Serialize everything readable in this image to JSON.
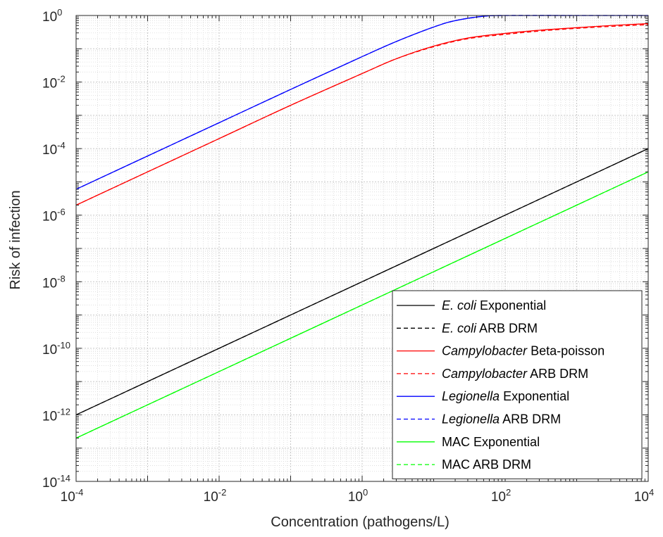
{
  "chart_data": {
    "type": "line",
    "xlabel": "Concentration (pathogens/L)",
    "ylabel": "Risk of infection",
    "x_scale": "log",
    "y_scale": "log",
    "xlim": [
      0.0001,
      10000
    ],
    "ylim": [
      1e-14,
      1
    ],
    "x_ticks": [
      {
        "value": 0.0001,
        "base": "10",
        "exp": "-4"
      },
      {
        "value": 0.01,
        "base": "10",
        "exp": "-2"
      },
      {
        "value": 1,
        "base": "10",
        "exp": "0"
      },
      {
        "value": 100,
        "base": "10",
        "exp": "2"
      },
      {
        "value": 10000,
        "base": "10",
        "exp": "4"
      }
    ],
    "y_ticks": [
      {
        "value": 1,
        "base": "10",
        "exp": "0"
      },
      {
        "value": 0.01,
        "base": "10",
        "exp": "-2"
      },
      {
        "value": 0.0001,
        "base": "10",
        "exp": "-4"
      },
      {
        "value": 1e-06,
        "base": "10",
        "exp": "-6"
      },
      {
        "value": 1e-08,
        "base": "10",
        "exp": "-8"
      },
      {
        "value": 1e-10,
        "base": "10",
        "exp": "-10"
      },
      {
        "value": 1e-12,
        "base": "10",
        "exp": "-12"
      },
      {
        "value": 1e-14,
        "base": "10",
        "exp": "-14"
      }
    ],
    "grid": true,
    "minor_grid": true,
    "legend_position": "bottom-right",
    "series": [
      {
        "name_italic": "E. coli",
        "name_rest": " Exponential",
        "color": "#000000",
        "dash": "solid",
        "x": [
          0.0001,
          0.001,
          0.01,
          0.1,
          1,
          10,
          100,
          1000,
          10000
        ],
        "y": [
          1e-12,
          1e-11,
          1e-10,
          1e-09,
          1e-08,
          1e-07,
          1e-06,
          1e-05,
          0.0001
        ]
      },
      {
        "name_italic": "E. coli",
        "name_rest": " ARB DRM",
        "color": "#000000",
        "dash": "dashed",
        "x": [
          0.0001,
          0.001,
          0.01,
          0.1,
          1,
          10,
          100,
          1000,
          10000
        ],
        "y": [
          1e-12,
          1e-11,
          1e-10,
          1e-09,
          1e-08,
          1e-07,
          1e-06,
          1e-05,
          0.0001
        ]
      },
      {
        "name_italic": "Campylobacter",
        "name_rest": " Beta-poisson",
        "color": "#ff0000",
        "dash": "solid",
        "x": [
          0.0001,
          0.001,
          0.01,
          0.1,
          1,
          3,
          10,
          30,
          100,
          300,
          1000,
          3000,
          10000
        ],
        "y": [
          2e-06,
          2e-05,
          0.0002,
          0.002,
          0.018,
          0.05,
          0.12,
          0.21,
          0.29,
          0.36,
          0.43,
          0.5,
          0.57
        ]
      },
      {
        "name_italic": "Campylobacter",
        "name_rest": " ARB DRM",
        "color": "#ff0000",
        "dash": "dashed",
        "x": [
          0.0001,
          0.001,
          0.01,
          0.1,
          1,
          3,
          10,
          30,
          100,
          300,
          1000,
          3000,
          10000
        ],
        "y": [
          2e-06,
          2e-05,
          0.0002,
          0.002,
          0.018,
          0.05,
          0.115,
          0.2,
          0.27,
          0.34,
          0.41,
          0.47,
          0.53
        ]
      },
      {
        "name_italic": "Legionella",
        "name_rest": " Exponential",
        "color": "#0000ff",
        "dash": "solid",
        "x": [
          0.0001,
          0.001,
          0.01,
          0.1,
          1,
          3,
          10,
          20,
          50,
          100,
          1000,
          10000
        ],
        "y": [
          6e-06,
          6e-05,
          0.0006,
          0.006,
          0.058,
          0.165,
          0.45,
          0.7,
          0.95,
          1,
          1,
          1
        ]
      },
      {
        "name_italic": "Legionella",
        "name_rest": " ARB DRM",
        "color": "#0000ff",
        "dash": "dashed",
        "x": [
          0.0001,
          0.001,
          0.01,
          0.1,
          1,
          3,
          10,
          20,
          50,
          100,
          1000,
          10000
        ],
        "y": [
          6e-06,
          6e-05,
          0.0006,
          0.006,
          0.058,
          0.165,
          0.45,
          0.7,
          0.95,
          1,
          1,
          1
        ]
      },
      {
        "name_italic": "",
        "name_rest": "MAC Exponential",
        "color": "#00ff00",
        "dash": "solid",
        "x": [
          0.0001,
          0.001,
          0.01,
          0.1,
          1,
          10,
          100,
          1000,
          10000
        ],
        "y": [
          2e-13,
          2e-12,
          2e-11,
          2e-10,
          2e-09,
          2e-08,
          2e-07,
          2e-06,
          2e-05
        ]
      },
      {
        "name_italic": "",
        "name_rest": "MAC ARB DRM",
        "color": "#00ff00",
        "dash": "dashed",
        "x": [
          0.0001,
          0.001,
          0.01,
          0.1,
          1,
          10,
          100,
          1000,
          10000
        ],
        "y": [
          2e-13,
          2e-12,
          2e-11,
          2e-10,
          2e-09,
          2e-08,
          2e-07,
          2e-06,
          2e-05
        ]
      }
    ]
  }
}
